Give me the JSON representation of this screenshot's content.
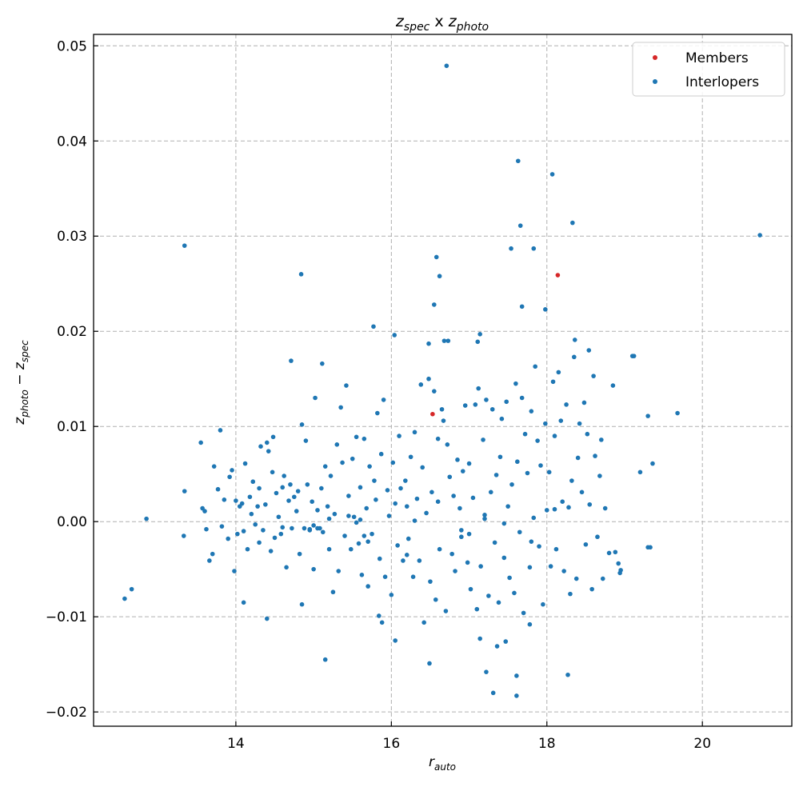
{
  "chart_data": {
    "type": "scatter",
    "title": {
      "base1": "z",
      "sub1": "spec",
      "mid": " x ",
      "base2": "z",
      "sub2": "photo"
    },
    "xlabel": {
      "base": "r",
      "sub": "auto"
    },
    "ylabel": {
      "base1": "z",
      "sub1": "photo",
      "mid": " − ",
      "base2": "z",
      "sub2": "spec"
    },
    "xlim": [
      12.17,
      21.15
    ],
    "ylim": [
      -0.0215,
      0.0512
    ],
    "xticks": [
      14,
      16,
      18,
      20
    ],
    "xtick_labels": [
      "14",
      "16",
      "18",
      "20"
    ],
    "yticks": [
      -0.02,
      -0.01,
      0.0,
      0.01,
      0.02,
      0.03,
      0.04,
      0.05
    ],
    "ytick_labels": [
      "−0.02",
      "−0.01",
      "0.00",
      "0.01",
      "0.02",
      "0.03",
      "0.04",
      "0.05"
    ],
    "grid": true,
    "legend_position": "top-right",
    "series": [
      {
        "name": "Members",
        "color": "#d62728",
        "points": [
          [
            16.53,
            0.0113
          ],
          [
            18.14,
            0.0259
          ]
        ]
      },
      {
        "name": "Interlopers",
        "color": "#1f77b4",
        "points": [
          [
            16.71,
            0.0479
          ],
          [
            17.63,
            0.0379
          ],
          [
            18.07,
            0.0365
          ],
          [
            18.33,
            0.0314
          ],
          [
            17.66,
            0.0311
          ],
          [
            13.34,
            0.029
          ],
          [
            20.74,
            0.0301
          ],
          [
            17.54,
            0.0287
          ],
          [
            17.83,
            0.0287
          ],
          [
            16.58,
            0.0278
          ],
          [
            14.84,
            0.026
          ],
          [
            16.62,
            0.0258
          ],
          [
            16.55,
            0.0228
          ],
          [
            17.68,
            0.0226
          ],
          [
            17.98,
            0.0223
          ],
          [
            17.14,
            0.0197
          ],
          [
            17.11,
            0.0189
          ],
          [
            16.04,
            0.0196
          ],
          [
            15.77,
            0.0205
          ],
          [
            16.48,
            0.0187
          ],
          [
            16.68,
            0.019
          ],
          [
            16.73,
            0.019
          ],
          [
            18.36,
            0.0191
          ],
          [
            19.12,
            0.0174
          ],
          [
            18.54,
            0.018
          ],
          [
            14.71,
            0.0169
          ],
          [
            15.11,
            0.0166
          ],
          [
            12.57,
            -0.0081
          ],
          [
            12.66,
            -0.0071
          ],
          [
            12.85,
            0.0003
          ],
          [
            13.33,
            -0.0015
          ],
          [
            13.34,
            0.0032
          ],
          [
            15.15,
            -0.0145
          ],
          [
            14.4,
            -0.0102
          ],
          [
            16.49,
            -0.0149
          ],
          [
            16.05,
            -0.0125
          ],
          [
            17.22,
            -0.0158
          ],
          [
            17.31,
            -0.018
          ],
          [
            17.61,
            -0.0183
          ],
          [
            17.61,
            -0.0162
          ],
          [
            18.27,
            -0.0161
          ],
          [
            17.36,
            -0.0131
          ],
          [
            17.47,
            -0.0126
          ],
          [
            17.14,
            -0.0123
          ],
          [
            17.78,
            -0.0108
          ],
          [
            15.88,
            -0.0106
          ],
          [
            15.84,
            -0.0099
          ],
          [
            14.85,
            -0.0087
          ],
          [
            14.1,
            -0.0085
          ],
          [
            19.3,
            -0.0027
          ],
          [
            18.94,
            -0.0054
          ],
          [
            13.55,
            0.0083
          ],
          [
            13.57,
            0.0014
          ],
          [
            13.6,
            0.0011
          ],
          [
            13.62,
            -0.0008
          ],
          [
            13.66,
            -0.0041
          ],
          [
            13.7,
            -0.0034
          ],
          [
            13.72,
            0.0058
          ],
          [
            13.77,
            0.0034
          ],
          [
            13.8,
            0.0096
          ],
          [
            13.82,
            -0.0005
          ],
          [
            13.85,
            0.0023
          ],
          [
            13.9,
            -0.0018
          ],
          [
            13.92,
            0.0047
          ],
          [
            13.95,
            0.0054
          ],
          [
            13.98,
            -0.0052
          ],
          [
            14.0,
            0.0022
          ],
          [
            14.02,
            -0.0013
          ],
          [
            14.05,
            0.0016
          ],
          [
            14.08,
            0.0019
          ],
          [
            14.1,
            -0.001
          ],
          [
            14.12,
            0.0061
          ],
          [
            14.15,
            -0.0029
          ],
          [
            14.18,
            0.0026
          ],
          [
            14.2,
            0.0008
          ],
          [
            14.22,
            0.0042
          ],
          [
            14.25,
            -0.0003
          ],
          [
            14.28,
            0.0016
          ],
          [
            14.3,
            0.0035
          ],
          [
            14.32,
            0.0079
          ],
          [
            14.35,
            -0.0009
          ],
          [
            14.38,
            0.0018
          ],
          [
            14.4,
            0.0083
          ],
          [
            14.42,
            0.0074
          ],
          [
            14.45,
            -0.0031
          ],
          [
            14.47,
            0.0052
          ],
          [
            14.48,
            0.0089
          ],
          [
            14.5,
            -0.0017
          ],
          [
            14.52,
            0.003
          ],
          [
            14.55,
            0.0005
          ],
          [
            14.58,
            -0.0013
          ],
          [
            14.6,
            0.0036
          ],
          [
            14.62,
            0.0048
          ],
          [
            14.65,
            -0.0048
          ],
          [
            14.68,
            0.0022
          ],
          [
            14.7,
            0.0039
          ],
          [
            14.72,
            -0.0007
          ],
          [
            14.75,
            0.0026
          ],
          [
            14.78,
            0.0011
          ],
          [
            14.8,
            0.0032
          ],
          [
            14.82,
            -0.0034
          ],
          [
            14.85,
            0.0102
          ],
          [
            14.88,
            -0.0007
          ],
          [
            14.9,
            0.0085
          ],
          [
            14.92,
            0.0039
          ],
          [
            14.95,
            -0.0009
          ],
          [
            14.98,
            0.0021
          ],
          [
            15.0,
            -0.005
          ],
          [
            15.02,
            0.013
          ],
          [
            15.05,
            0.0012
          ],
          [
            15.08,
            -0.0007
          ],
          [
            15.1,
            0.0035
          ],
          [
            15.12,
            -0.0011
          ],
          [
            15.15,
            0.0058
          ],
          [
            15.18,
            0.0016
          ],
          [
            15.2,
            -0.0029
          ],
          [
            15.22,
            0.0048
          ],
          [
            15.25,
            -0.0074
          ],
          [
            15.27,
            0.0008
          ],
          [
            15.3,
            0.0081
          ],
          [
            15.32,
            -0.0052
          ],
          [
            15.35,
            0.012
          ],
          [
            15.37,
            0.0062
          ],
          [
            15.4,
            -0.0015
          ],
          [
            15.42,
            0.0143
          ],
          [
            15.45,
            0.0027
          ],
          [
            15.48,
            -0.0029
          ],
          [
            15.5,
            0.0066
          ],
          [
            15.52,
            0.0005
          ],
          [
            15.55,
            0.0089
          ],
          [
            15.58,
            -0.0023
          ],
          [
            15.6,
            0.0036
          ],
          [
            15.62,
            -0.0056
          ],
          [
            15.65,
            0.0087
          ],
          [
            15.68,
            0.0014
          ],
          [
            15.7,
            -0.0068
          ],
          [
            15.72,
            0.0058
          ],
          [
            15.75,
            -0.0013
          ],
          [
            15.78,
            0.0043
          ],
          [
            15.8,
            0.0023
          ],
          [
            15.82,
            0.0114
          ],
          [
            15.85,
            -0.0039
          ],
          [
            15.87,
            0.0071
          ],
          [
            15.9,
            0.0128
          ],
          [
            15.92,
            -0.0058
          ],
          [
            15.95,
            0.0033
          ],
          [
            15.97,
            0.0006
          ],
          [
            16.0,
            -0.0077
          ],
          [
            16.02,
            0.0062
          ],
          [
            16.05,
            0.0019
          ],
          [
            16.08,
            -0.0025
          ],
          [
            16.1,
            0.009
          ],
          [
            16.12,
            0.0035
          ],
          [
            16.15,
            -0.0041
          ],
          [
            16.18,
            0.0043
          ],
          [
            16.2,
            0.0016
          ],
          [
            16.22,
            -0.0018
          ],
          [
            16.25,
            0.0068
          ],
          [
            16.28,
            -0.0058
          ],
          [
            16.3,
            0.0094
          ],
          [
            16.33,
            0.0024
          ],
          [
            16.36,
            -0.0041
          ],
          [
            16.38,
            0.0144
          ],
          [
            16.4,
            0.0057
          ],
          [
            16.42,
            -0.0106
          ],
          [
            16.45,
            0.0009
          ],
          [
            16.48,
            0.015
          ],
          [
            16.5,
            -0.0063
          ],
          [
            16.52,
            0.0031
          ],
          [
            16.55,
            0.0137
          ],
          [
            16.57,
            -0.0082
          ],
          [
            16.6,
            0.0087
          ],
          [
            16.62,
            -0.0029
          ],
          [
            16.65,
            0.0118
          ],
          [
            16.67,
            0.0106
          ],
          [
            16.7,
            -0.0094
          ],
          [
            16.72,
            0.0081
          ],
          [
            16.75,
            0.0047
          ],
          [
            16.78,
            -0.0034
          ],
          [
            16.8,
            0.0027
          ],
          [
            16.82,
            -0.0052
          ],
          [
            16.85,
            0.0065
          ],
          [
            16.88,
            0.0014
          ],
          [
            16.9,
            -0.0016
          ],
          [
            16.92,
            0.0053
          ],
          [
            16.95,
            0.0122
          ],
          [
            16.98,
            -0.0043
          ],
          [
            17.0,
            0.0061
          ],
          [
            17.02,
            -0.0071
          ],
          [
            17.05,
            0.0025
          ],
          [
            17.08,
            0.0123
          ],
          [
            17.1,
            -0.0092
          ],
          [
            17.12,
            0.014
          ],
          [
            17.15,
            -0.0047
          ],
          [
            17.18,
            0.0086
          ],
          [
            17.2,
            0.0003
          ],
          [
            17.22,
            0.0128
          ],
          [
            17.25,
            -0.0078
          ],
          [
            17.28,
            0.0031
          ],
          [
            17.3,
            0.0118
          ],
          [
            17.33,
            -0.0022
          ],
          [
            17.35,
            0.0049
          ],
          [
            17.38,
            -0.0085
          ],
          [
            17.4,
            0.0068
          ],
          [
            17.42,
            0.0108
          ],
          [
            17.45,
            -0.0038
          ],
          [
            17.48,
            0.0126
          ],
          [
            17.5,
            0.0016
          ],
          [
            17.52,
            -0.0059
          ],
          [
            17.55,
            0.0039
          ],
          [
            17.58,
            -0.0075
          ],
          [
            17.6,
            0.0145
          ],
          [
            17.62,
            0.0063
          ],
          [
            17.65,
            -0.0011
          ],
          [
            17.68,
            0.013
          ],
          [
            17.7,
            -0.0096
          ],
          [
            17.72,
            0.0092
          ],
          [
            17.75,
            0.0051
          ],
          [
            17.78,
            -0.0048
          ],
          [
            17.8,
            0.0116
          ],
          [
            17.83,
            0.0004
          ],
          [
            17.85,
            0.0163
          ],
          [
            17.88,
            0.0085
          ],
          [
            17.9,
            -0.0026
          ],
          [
            17.92,
            0.0059
          ],
          [
            17.95,
            -0.0087
          ],
          [
            17.98,
            0.0103
          ],
          [
            18.0,
            0.0012
          ],
          [
            18.03,
            0.0052
          ],
          [
            18.05,
            -0.0047
          ],
          [
            18.08,
            0.0147
          ],
          [
            18.1,
            0.009
          ],
          [
            18.12,
            -0.0029
          ],
          [
            18.15,
            0.0157
          ],
          [
            18.18,
            0.0106
          ],
          [
            18.2,
            0.0021
          ],
          [
            18.22,
            -0.0052
          ],
          [
            18.25,
            0.0123
          ],
          [
            18.28,
            0.0015
          ],
          [
            18.3,
            -0.0076
          ],
          [
            18.32,
            0.0043
          ],
          [
            18.35,
            0.0173
          ],
          [
            18.38,
            -0.006
          ],
          [
            18.4,
            0.0067
          ],
          [
            18.42,
            0.0103
          ],
          [
            18.45,
            0.0031
          ],
          [
            18.48,
            0.0125
          ],
          [
            18.5,
            -0.0024
          ],
          [
            18.52,
            0.0092
          ],
          [
            18.55,
            0.0018
          ],
          [
            18.58,
            -0.0071
          ],
          [
            18.6,
            0.0153
          ],
          [
            18.62,
            0.0069
          ],
          [
            18.65,
            -0.0016
          ],
          [
            18.68,
            0.0048
          ],
          [
            18.7,
            0.0086
          ],
          [
            18.72,
            -0.006
          ],
          [
            18.75,
            0.0014
          ],
          [
            18.8,
            -0.0033
          ],
          [
            18.85,
            0.0143
          ],
          [
            18.88,
            -0.0032
          ],
          [
            18.92,
            -0.0044
          ],
          [
            18.95,
            -0.0051
          ],
          [
            19.1,
            0.0174
          ],
          [
            19.2,
            0.0052
          ],
          [
            19.3,
            0.0111
          ],
          [
            19.33,
            -0.0027
          ],
          [
            19.36,
            0.0061
          ],
          [
            19.68,
            0.0114
          ],
          [
            14.95,
            -0.0008
          ],
          [
            15.0,
            -0.0004
          ],
          [
            15.05,
            -0.0007
          ],
          [
            15.55,
            -0.0001
          ],
          [
            15.6,
            0.0002
          ],
          [
            15.65,
            -0.0015
          ],
          [
            16.3,
            0.0001
          ],
          [
            16.9,
            -0.0009
          ],
          [
            17.45,
            -0.0002
          ],
          [
            17.0,
            -0.0013
          ],
          [
            15.45,
            0.0006
          ],
          [
            15.7,
            -0.0021
          ],
          [
            16.2,
            -0.0035
          ],
          [
            16.6,
            0.0021
          ],
          [
            17.2,
            0.0007
          ],
          [
            17.8,
            -0.0021
          ],
          [
            18.1,
            0.0013
          ],
          [
            14.3,
            -0.0022
          ],
          [
            14.6,
            -0.0006
          ],
          [
            15.2,
            0.0003
          ]
        ]
      }
    ]
  }
}
